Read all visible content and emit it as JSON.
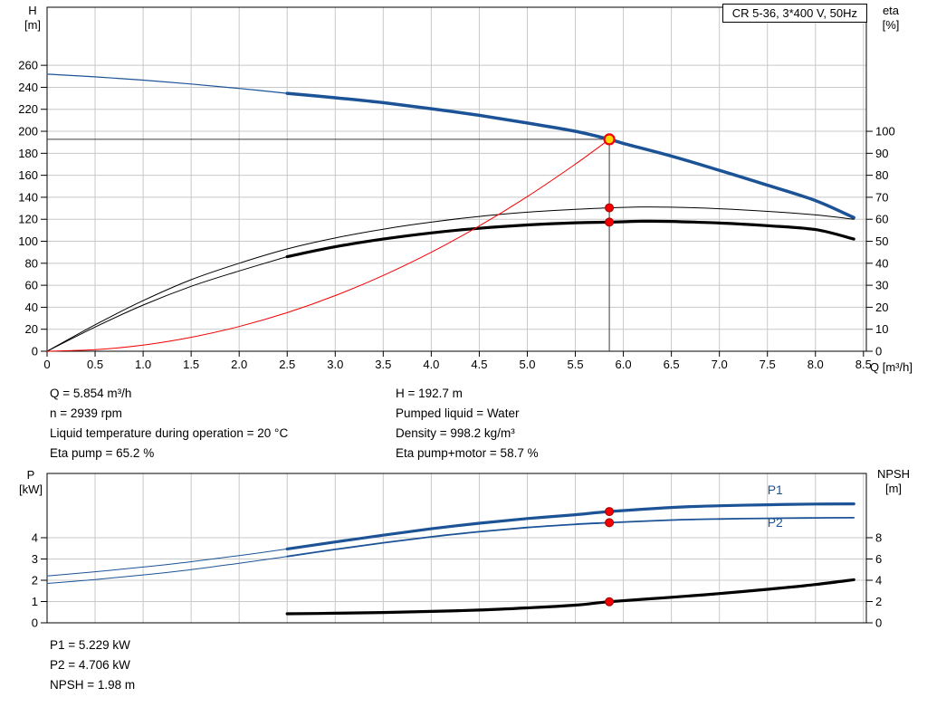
{
  "colors": {
    "blue": "#1c5396",
    "black": "#000000",
    "red": "#f40000",
    "grid": "#c8c8c8",
    "crosshair": "#3c3c3c",
    "duty_yellow": "#ffd800"
  },
  "info_top": {
    "left": [
      "Q = 5.854 m³/h",
      "n = 2939 rpm",
      "Liquid temperature during operation = 20 °C",
      "Eta pump = 65.2 %"
    ],
    "right": [
      "H = 192.7 m",
      "Pumped liquid = Water",
      "Density = 998.2 kg/m³",
      "Eta pump+motor = 58.7 %"
    ]
  },
  "info_bottom": [
    "P1 = 5.229 kW",
    "P2 = 4.706 kW",
    "NPSH = 1.98 m"
  ],
  "chart_data": [
    {
      "name": "hq-eta-chart",
      "type": "line",
      "title": "CR 5-36, 3*400 V, 50Hz",
      "x_axis": {
        "label": "Q [m³/h]",
        "min": 0,
        "max": 8.53,
        "ticks": [
          [
            0,
            "0"
          ],
          [
            0.5,
            "0.5"
          ],
          [
            1,
            "1.0"
          ],
          [
            1.5,
            "1.5"
          ],
          [
            2,
            "2.0"
          ],
          [
            2.5,
            "2.5"
          ],
          [
            3,
            "3.0"
          ],
          [
            3.5,
            "3.5"
          ],
          [
            4,
            "4.0"
          ],
          [
            4.5,
            "4.5"
          ],
          [
            5,
            "5.0"
          ],
          [
            5.5,
            "5.5"
          ],
          [
            6,
            "6.0"
          ],
          [
            6.5,
            "6.5"
          ],
          [
            7,
            "7.0"
          ],
          [
            7.5,
            "7.5"
          ],
          [
            8,
            "8.0"
          ],
          [
            8.5,
            "8.5"
          ]
        ]
      },
      "y_left": {
        "label": "H [m]",
        "label_lines": [
          "H",
          "[m]"
        ],
        "min": 0,
        "max": 312.8,
        "ticks": [
          [
            0,
            "0"
          ],
          [
            20,
            "20"
          ],
          [
            40,
            "40"
          ],
          [
            60,
            "60"
          ],
          [
            80,
            "80"
          ],
          [
            100,
            "100"
          ],
          [
            120,
            "120"
          ],
          [
            140,
            "140"
          ],
          [
            160,
            "160"
          ],
          [
            180,
            "180"
          ],
          [
            200,
            "200"
          ],
          [
            220,
            "220"
          ],
          [
            240,
            "240"
          ],
          [
            260,
            "260"
          ]
        ]
      },
      "y_right": {
        "label": "eta [%]",
        "label_lines": [
          "eta",
          "[%]"
        ],
        "min": 0,
        "max": 156.4,
        "ticks": [
          [
            0,
            "0"
          ],
          [
            10,
            "10"
          ],
          [
            20,
            "20"
          ],
          [
            30,
            "30"
          ],
          [
            40,
            "40"
          ],
          [
            50,
            "50"
          ],
          [
            60,
            "60"
          ],
          [
            70,
            "70"
          ],
          [
            80,
            "80"
          ],
          [
            90,
            "90"
          ],
          [
            100,
            "100"
          ]
        ]
      },
      "series": [
        {
          "name": "hq-thin",
          "axis": "left",
          "color": "blue",
          "width": 1.2,
          "points": [
            [
              0,
              252
            ],
            [
              0.5,
              249.5
            ],
            [
              1,
              246.5
            ],
            [
              1.5,
              243
            ],
            [
              2,
              239
            ],
            [
              2.5,
              234.5
            ]
          ]
        },
        {
          "name": "hq-thick",
          "axis": "left",
          "color": "blue",
          "width": 3.5,
          "points": [
            [
              2.5,
              234.5
            ],
            [
              3,
              230.5
            ],
            [
              3.5,
              226
            ],
            [
              4,
              220.5
            ],
            [
              4.5,
              214.5
            ],
            [
              5,
              207.5
            ],
            [
              5.5,
              200
            ],
            [
              5.854,
              192.7
            ],
            [
              6,
              189
            ],
            [
              6.5,
              177.5
            ],
            [
              7,
              164.5
            ],
            [
              7.5,
              151
            ],
            [
              8,
              137
            ],
            [
              8.4,
              121.5
            ]
          ]
        },
        {
          "name": "eta-pump-thin",
          "axis": "right",
          "color": "black",
          "width": 1,
          "points": [
            [
              0,
              0
            ],
            [
              0.5,
              12
            ],
            [
              1,
              23
            ],
            [
              1.5,
              32.5
            ],
            [
              2,
              40
            ],
            [
              2.5,
              46.5
            ],
            [
              3,
              51.5
            ],
            [
              3.5,
              55.5
            ],
            [
              4,
              58.7
            ],
            [
              4.5,
              61.3
            ],
            [
              5,
              63.2
            ],
            [
              5.5,
              64.5
            ],
            [
              5.854,
              65.2
            ],
            [
              6.2,
              65.6
            ],
            [
              6.5,
              65.5
            ],
            [
              7,
              64.8
            ],
            [
              7.5,
              63.6
            ],
            [
              8,
              62
            ],
            [
              8.4,
              60
            ]
          ]
        },
        {
          "name": "eta-pump-motor-thin",
          "axis": "right",
          "color": "black",
          "width": 1,
          "points": [
            [
              0,
              0
            ],
            [
              0.5,
              11
            ],
            [
              1,
              21
            ],
            [
              1.5,
              29.5
            ],
            [
              2,
              36.5
            ],
            [
              2.5,
              43
            ]
          ]
        },
        {
          "name": "eta-pump-motor-thick",
          "axis": "right",
          "color": "black",
          "width": 3.2,
          "points": [
            [
              2.5,
              43
            ],
            [
              3,
              47.5
            ],
            [
              3.5,
              51
            ],
            [
              4,
              53.8
            ],
            [
              4.5,
              55.9
            ],
            [
              5,
              57.4
            ],
            [
              5.5,
              58.4
            ],
            [
              5.854,
              58.7
            ],
            [
              6.2,
              59.1
            ],
            [
              6.5,
              59
            ],
            [
              7,
              58.3
            ],
            [
              7.5,
              57.1
            ],
            [
              8,
              55.3
            ],
            [
              8.4,
              51
            ]
          ]
        },
        {
          "name": "system-curve",
          "axis": "left",
          "color": "red",
          "width": 1,
          "points": [
            [
              0,
              0
            ],
            [
              0.5,
              1.4
            ],
            [
              1,
              5.6
            ],
            [
              1.5,
              12.7
            ],
            [
              2,
              22.5
            ],
            [
              2.5,
              35.1
            ],
            [
              3,
              50.6
            ],
            [
              3.5,
              68.9
            ],
            [
              4,
              90.0
            ],
            [
              4.5,
              113.9
            ],
            [
              5,
              140.6
            ],
            [
              5.5,
              170.1
            ],
            [
              5.854,
              192.7
            ]
          ]
        }
      ],
      "crosshair": {
        "q": 5.854,
        "h": 192.7
      },
      "duty_point": {
        "q": 5.854,
        "h": 192.7
      },
      "dots": [
        {
          "axis": "right",
          "q": 5.854,
          "v": 65.2
        },
        {
          "axis": "right",
          "q": 5.854,
          "v": 58.7
        }
      ]
    },
    {
      "name": "power-npsh-chart",
      "type": "line",
      "x_axis": {
        "label": "",
        "min": 0,
        "max": 8.53,
        "ticks": [
          [
            0.5,
            ""
          ],
          [
            1,
            ""
          ],
          [
            1.5,
            ""
          ],
          [
            2,
            ""
          ],
          [
            2.5,
            ""
          ],
          [
            3,
            ""
          ],
          [
            3.5,
            ""
          ],
          [
            4,
            ""
          ],
          [
            4.5,
            ""
          ],
          [
            5,
            ""
          ],
          [
            5.5,
            ""
          ],
          [
            6,
            ""
          ],
          [
            6.5,
            ""
          ],
          [
            7,
            ""
          ],
          [
            7.5,
            ""
          ],
          [
            8,
            ""
          ],
          [
            8.5,
            ""
          ]
        ]
      },
      "y_left": {
        "label": "P [kW]",
        "label_lines": [
          "P",
          "[kW]"
        ],
        "min": 0,
        "max": 7.02,
        "ticks": [
          [
            0,
            "0"
          ],
          [
            1,
            "1"
          ],
          [
            2,
            "2"
          ],
          [
            3,
            "3"
          ],
          [
            4,
            "4"
          ]
        ]
      },
      "y_right": {
        "label": "NPSH [m]",
        "label_lines": [
          "NPSH",
          "[m]"
        ],
        "min": 0,
        "max": 14.04,
        "ticks": [
          [
            0,
            "0"
          ],
          [
            2,
            "2"
          ],
          [
            4,
            "4"
          ],
          [
            6,
            "6"
          ],
          [
            8,
            "8"
          ]
        ]
      },
      "series": [
        {
          "name": "p1-thin",
          "axis": "left",
          "color": "blue",
          "width": 1,
          "points": [
            [
              0,
              2.2
            ],
            [
              0.5,
              2.4
            ],
            [
              1,
              2.62
            ],
            [
              1.5,
              2.87
            ],
            [
              2,
              3.16
            ],
            [
              2.5,
              3.47
            ]
          ]
        },
        {
          "name": "p1-thick",
          "axis": "left",
          "color": "blue",
          "width": 3.2,
          "points": [
            [
              2.5,
              3.47
            ],
            [
              3,
              3.8
            ],
            [
              3.5,
              4.12
            ],
            [
              4,
              4.42
            ],
            [
              4.5,
              4.68
            ],
            [
              5,
              4.9
            ],
            [
              5.5,
              5.08
            ],
            [
              5.854,
              5.229
            ],
            [
              6.5,
              5.42
            ],
            [
              7,
              5.5
            ],
            [
              7.5,
              5.55
            ],
            [
              8,
              5.58
            ],
            [
              8.4,
              5.59
            ]
          ]
        },
        {
          "name": "p2-thin",
          "axis": "left",
          "color": "blue",
          "width": 1,
          "points": [
            [
              0,
              1.85
            ],
            [
              0.5,
              2.03
            ],
            [
              1,
              2.25
            ],
            [
              1.5,
              2.5
            ],
            [
              2,
              2.8
            ],
            [
              2.5,
              3.12
            ]
          ]
        },
        {
          "name": "p2-thick",
          "axis": "left",
          "color": "blue",
          "width": 1.8,
          "points": [
            [
              2.5,
              3.12
            ],
            [
              3,
              3.45
            ],
            [
              3.5,
              3.76
            ],
            [
              4,
              4.04
            ],
            [
              4.5,
              4.28
            ],
            [
              5,
              4.48
            ],
            [
              5.5,
              4.63
            ],
            [
              5.854,
              4.706
            ],
            [
              6.5,
              4.83
            ],
            [
              7,
              4.88
            ],
            [
              7.5,
              4.91
            ],
            [
              8,
              4.93
            ],
            [
              8.4,
              4.94
            ]
          ]
        },
        {
          "name": "npsh-thick",
          "axis": "right",
          "color": "black",
          "width": 3.2,
          "points": [
            [
              2.5,
              0.85
            ],
            [
              3,
              0.9
            ],
            [
              3.5,
              0.97
            ],
            [
              4,
              1.07
            ],
            [
              4.5,
              1.2
            ],
            [
              5,
              1.4
            ],
            [
              5.5,
              1.66
            ],
            [
              5.854,
              1.98
            ],
            [
              6.5,
              2.4
            ],
            [
              7,
              2.75
            ],
            [
              7.5,
              3.15
            ],
            [
              8,
              3.6
            ],
            [
              8.4,
              4.05
            ]
          ]
        }
      ],
      "dots": [
        {
          "axis": "left",
          "q": 5.854,
          "v": 5.229
        },
        {
          "axis": "left",
          "q": 5.854,
          "v": 4.706
        },
        {
          "axis": "right",
          "q": 5.854,
          "v": 1.98
        }
      ],
      "annotations": [
        {
          "text": "P1",
          "q": 7.5,
          "v": 6.05,
          "axis": "left",
          "color": "blue"
        },
        {
          "text": "P2",
          "q": 7.5,
          "v": 4.5,
          "axis": "left",
          "color": "blue"
        }
      ]
    }
  ]
}
